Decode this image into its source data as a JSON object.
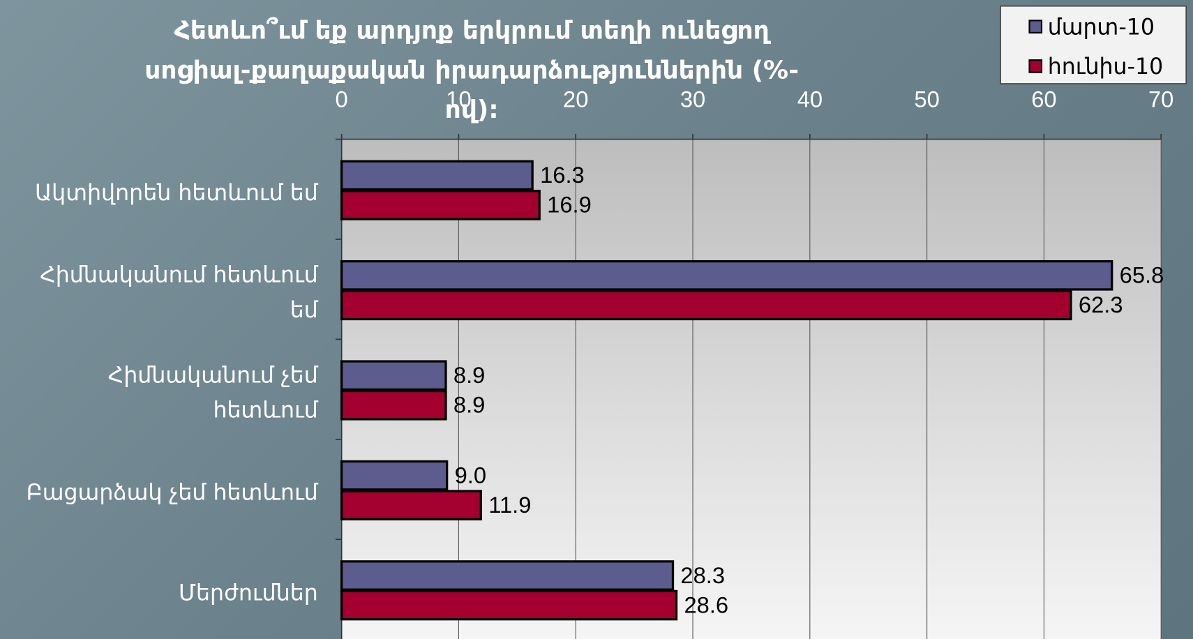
{
  "chart_data": {
    "type": "bar",
    "orientation": "horizontal",
    "title": "Հետևո՞ւմ եք արդյոք երկրում տեղի ունեցող սոցիալ-քաղաքական իրադարձություններին (%-ով):",
    "categories": [
      "Ակտիվորեն հետևում եմ",
      "Հիմնականում հետևում եմ",
      "Հիմնականում չեմ հետևում",
      "Բացարձակ չեմ հետևում",
      "Մերժումներ"
    ],
    "series": [
      {
        "name": "մարտ-10",
        "color": "#5c5c8e",
        "values": [
          16.3,
          65.8,
          8.9,
          9.0,
          28.3
        ],
        "value_labels": [
          "16.3",
          "65.8",
          "8.9",
          "9.0",
          "28.3"
        ]
      },
      {
        "name": "հունիս-10",
        "color": "#a3002f",
        "values": [
          16.9,
          62.3,
          8.9,
          11.9,
          28.6
        ],
        "value_labels": [
          "16.9",
          "62.3",
          "8.9",
          "11.9",
          "28.6"
        ]
      }
    ],
    "xlim": [
      0,
      70
    ],
    "xticks": [
      0,
      10,
      20,
      30,
      40,
      50,
      60,
      70
    ],
    "grid": true,
    "legend": "top-right"
  }
}
